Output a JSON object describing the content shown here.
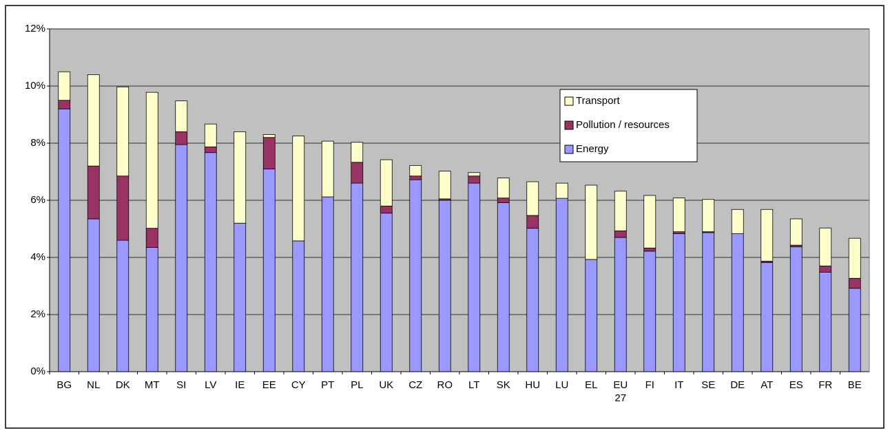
{
  "chart_data": {
    "type": "stacked_bar",
    "categories": [
      "BG",
      "NL",
      "DK",
      "MT",
      "SI",
      "LV",
      "IE",
      "EE",
      "CY",
      "PT",
      "PL",
      "UK",
      "CZ",
      "RO",
      "LT",
      "SK",
      "HU",
      "LU",
      "EL",
      "EU 27",
      "FI",
      "IT",
      "SE",
      "DE",
      "AT",
      "ES",
      "FR",
      "BE"
    ],
    "series": [
      {
        "name": "Energy",
        "color": "#9999ff",
        "values": [
          9.2,
          5.35,
          4.6,
          4.35,
          7.95,
          7.67,
          5.2,
          7.1,
          4.58,
          6.12,
          6.6,
          5.55,
          6.72,
          6.0,
          6.6,
          5.92,
          5.02,
          6.07,
          3.93,
          4.7,
          4.22,
          4.83,
          4.87,
          4.83,
          3.82,
          4.37,
          3.48,
          2.92
        ]
      },
      {
        "name": "Pollution / resources",
        "color": "#993366",
        "values": [
          0.3,
          1.85,
          2.25,
          0.67,
          0.45,
          0.2,
          0,
          1.1,
          0,
          0,
          0.73,
          0.25,
          0.13,
          0.05,
          0.25,
          0.16,
          0.45,
          0,
          0,
          0.23,
          0.11,
          0.07,
          0.03,
          0,
          0.05,
          0.06,
          0.22,
          0.35
        ]
      },
      {
        "name": "Transport",
        "color": "#ffffcc",
        "values": [
          1.0,
          3.2,
          3.12,
          4.76,
          1.08,
          0.8,
          3.2,
          0.1,
          3.67,
          1.95,
          0.7,
          1.62,
          0.37,
          0.97,
          0.12,
          0.7,
          1.18,
          0.53,
          2.6,
          1.39,
          1.84,
          1.18,
          1.13,
          0.85,
          1.81,
          0.92,
          1.33,
          1.4
        ]
      }
    ],
    "ylim": [
      0,
      12
    ],
    "yticks": [
      {
        "value": 0,
        "label": "0%"
      },
      {
        "value": 2,
        "label": "2%"
      },
      {
        "value": 4,
        "label": "4%"
      },
      {
        "value": 6,
        "label": "6%"
      },
      {
        "value": 8,
        "label": "8%"
      },
      {
        "value": 10,
        "label": "10%"
      },
      {
        "value": 12,
        "label": "12%"
      }
    ],
    "grid": true,
    "plot_background": "#c0c0c0"
  }
}
